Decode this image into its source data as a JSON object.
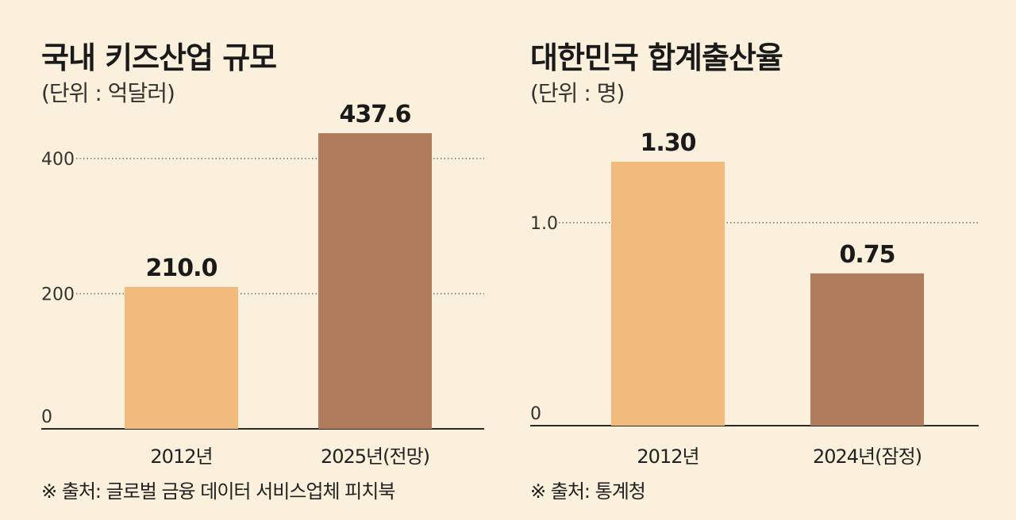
{
  "charts": [
    {
      "title": "국내 키즈산업 규모",
      "unit": "(단위 : 억달러)",
      "source": "※ 출처: 글로벌 금융 데이터 서비스업체 피치북",
      "chart_data": {
        "type": "bar",
        "categories": [
          "2012년",
          "2025년(전망)"
        ],
        "values": [
          210.0,
          437.6
        ],
        "value_labels": [
          "210.0",
          "437.6"
        ],
        "yticks": [
          0,
          200,
          400
        ],
        "ytick_labels": [
          "0",
          "200",
          "400"
        ],
        "ylim": [
          0,
          437.6
        ],
        "grid": "dotted horizontal at 200 and 400",
        "bar_colors": [
          "#f0bb7c",
          "#b17c5e"
        ]
      }
    },
    {
      "title": "대한민국 합계출산율",
      "unit": "(단위 : 명)",
      "source": "※ 출처: 통계청",
      "chart_data": {
        "type": "bar",
        "categories": [
          "2012년",
          "2024년(잠정)"
        ],
        "values": [
          1.3,
          0.75
        ],
        "value_labels": [
          "1.30",
          "0.75"
        ],
        "yticks": [
          0,
          1.0
        ],
        "ytick_labels": [
          "0",
          "1.0"
        ],
        "ylim": [
          0,
          1.3
        ],
        "grid": "dotted horizontal at 1.0",
        "bar_colors": [
          "#f0bb7c",
          "#b17c5e"
        ]
      }
    }
  ]
}
